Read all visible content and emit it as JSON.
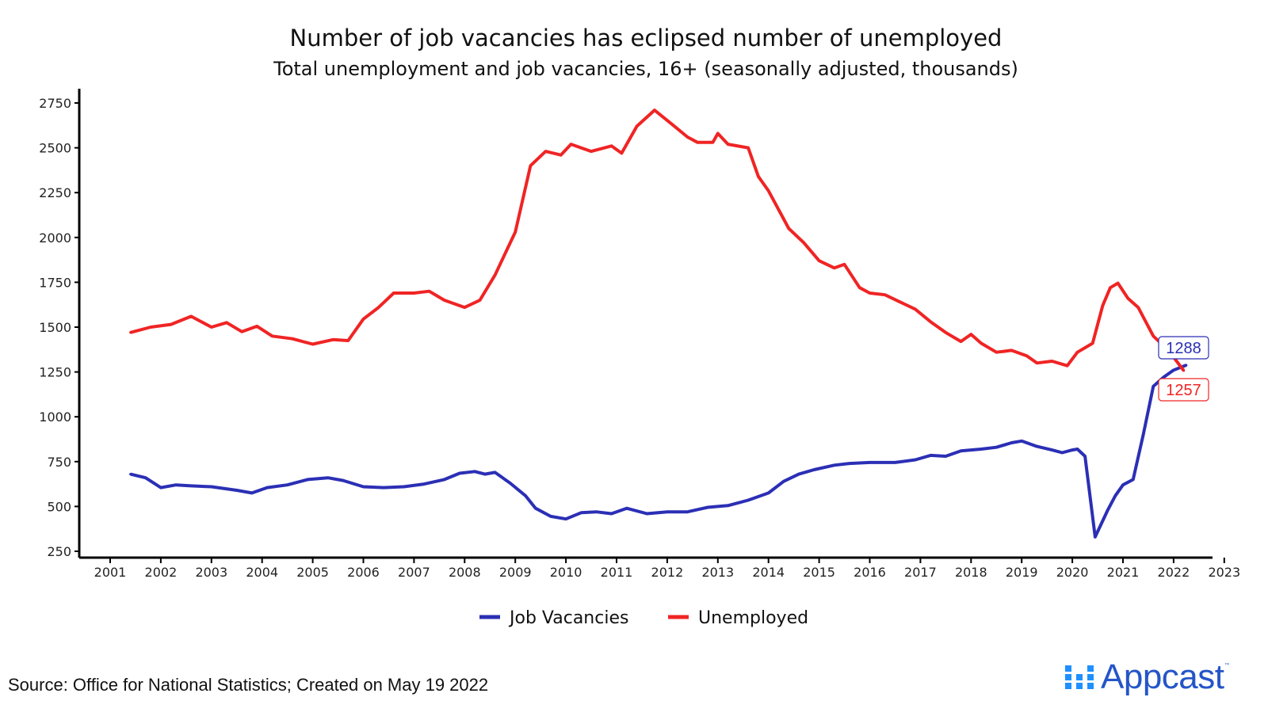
{
  "chart_data": {
    "type": "line",
    "title": "Number of job vacancies has eclipsed number of unemployed",
    "subtitle": "Total unemployment and job vacancies, 16+ (seasonally adjusted, thousands)",
    "xlabel": "",
    "ylabel": "",
    "xlim": [
      2001,
      2023
    ],
    "ylim": [
      250,
      2750
    ],
    "x_ticks": [
      2001,
      2002,
      2003,
      2004,
      2005,
      2006,
      2007,
      2008,
      2009,
      2010,
      2011,
      2012,
      2013,
      2014,
      2015,
      2016,
      2017,
      2018,
      2019,
      2020,
      2021,
      2022,
      2023
    ],
    "y_ticks": [
      250,
      500,
      750,
      1000,
      1250,
      1500,
      1750,
      2000,
      2250,
      2500,
      2750
    ],
    "grid": false,
    "legend_position": "bottom",
    "series": [
      {
        "name": "Job Vacancies",
        "color": "#2b2fb5",
        "end_label": "1288",
        "x": [
          2001.4,
          2001.7,
          2002.0,
          2002.3,
          2002.6,
          2003.0,
          2003.5,
          2003.8,
          2004.1,
          2004.5,
          2004.9,
          2005.3,
          2005.6,
          2006.0,
          2006.4,
          2006.8,
          2007.2,
          2007.6,
          2007.9,
          2008.2,
          2008.4,
          2008.6,
          2008.9,
          2009.2,
          2009.4,
          2009.7,
          2010.0,
          2010.3,
          2010.6,
          2010.9,
          2011.2,
          2011.6,
          2012.0,
          2012.4,
          2012.8,
          2013.2,
          2013.6,
          2014.0,
          2014.3,
          2014.6,
          2014.9,
          2015.3,
          2015.6,
          2016.0,
          2016.5,
          2016.9,
          2017.2,
          2017.5,
          2017.8,
          2018.2,
          2018.5,
          2018.8,
          2019.0,
          2019.3,
          2019.6,
          2019.8,
          2020.0,
          2020.1,
          2020.25,
          2020.45,
          2020.7,
          2020.85,
          2021.0,
          2021.2,
          2021.4,
          2021.6,
          2021.8,
          2022.0,
          2022.25
        ],
        "values": [
          680,
          660,
          605,
          620,
          615,
          610,
          590,
          575,
          605,
          620,
          650,
          660,
          645,
          610,
          605,
          610,
          625,
          650,
          685,
          695,
          680,
          690,
          630,
          560,
          490,
          445,
          430,
          465,
          470,
          460,
          490,
          460,
          470,
          470,
          495,
          505,
          535,
          575,
          640,
          680,
          705,
          730,
          740,
          745,
          745,
          760,
          785,
          780,
          810,
          820,
          830,
          855,
          865,
          835,
          815,
          800,
          815,
          820,
          780,
          330,
          480,
          560,
          620,
          650,
          900,
          1170,
          1220,
          1260,
          1288
        ]
      },
      {
        "name": "Unemployed",
        "color": "#f02424",
        "end_label": "1257",
        "x": [
          2001.4,
          2001.8,
          2002.2,
          2002.6,
          2003.0,
          2003.3,
          2003.6,
          2003.9,
          2004.2,
          2004.6,
          2005.0,
          2005.4,
          2005.7,
          2006.0,
          2006.3,
          2006.6,
          2007.0,
          2007.3,
          2007.6,
          2008.0,
          2008.3,
          2008.6,
          2009.0,
          2009.3,
          2009.6,
          2009.9,
          2010.1,
          2010.5,
          2010.9,
          2011.1,
          2011.4,
          2011.75,
          2012.1,
          2012.4,
          2012.6,
          2012.9,
          2013.0,
          2013.2,
          2013.6,
          2013.8,
          2014.0,
          2014.4,
          2014.7,
          2015.0,
          2015.3,
          2015.5,
          2015.8,
          2016.0,
          2016.3,
          2016.6,
          2016.9,
          2017.2,
          2017.5,
          2017.8,
          2018.0,
          2018.2,
          2018.5,
          2018.8,
          2019.1,
          2019.3,
          2019.6,
          2019.9,
          2020.1,
          2020.4,
          2020.6,
          2020.75,
          2020.9,
          2021.1,
          2021.3,
          2021.6,
          2021.9,
          2022.2
        ],
        "values": [
          1470,
          1500,
          1515,
          1560,
          1500,
          1525,
          1475,
          1505,
          1450,
          1435,
          1405,
          1430,
          1425,
          1545,
          1610,
          1690,
          1690,
          1700,
          1650,
          1610,
          1650,
          1790,
          2030,
          2400,
          2480,
          2460,
          2520,
          2480,
          2510,
          2470,
          2620,
          2710,
          2630,
          2560,
          2530,
          2530,
          2580,
          2520,
          2500,
          2340,
          2260,
          2050,
          1970,
          1870,
          1830,
          1850,
          1720,
          1690,
          1680,
          1640,
          1600,
          1530,
          1470,
          1420,
          1460,
          1410,
          1360,
          1370,
          1340,
          1300,
          1310,
          1285,
          1360,
          1410,
          1620,
          1720,
          1745,
          1660,
          1610,
          1450,
          1370,
          1257
        ]
      }
    ]
  },
  "footer": {
    "source": "Source: Office for National Statistics; Created on May 19 2022",
    "logo_text": "Appcast",
    "logo_tm": "™"
  }
}
